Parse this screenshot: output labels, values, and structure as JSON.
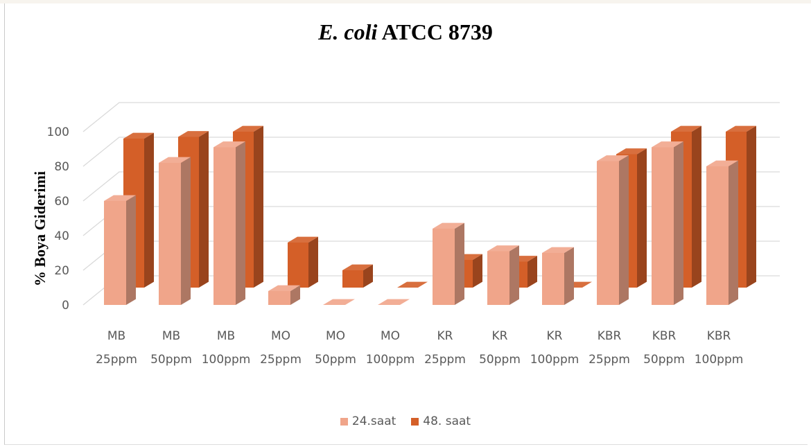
{
  "chart_data": {
    "type": "bar",
    "title_italic": "E. coli",
    "title_rest": "ATCC 8739",
    "ylabel": "% Boya Giderimi",
    "xlabel": "",
    "ylim": [
      0,
      100
    ],
    "yticks": [
      0,
      20,
      40,
      60,
      80,
      100
    ],
    "grid": true,
    "legend_position": "bottom",
    "categories": [
      [
        "MB",
        "25ppm"
      ],
      [
        "MB",
        "50ppm"
      ],
      [
        "MB",
        "100ppm"
      ],
      [
        "MO",
        "25ppm"
      ],
      [
        "MO",
        "50ppm"
      ],
      [
        "MO",
        "100ppm"
      ],
      [
        "KR",
        "25ppm"
      ],
      [
        "KR",
        "50ppm"
      ],
      [
        "KR",
        "100ppm"
      ],
      [
        "KBR",
        "25ppm"
      ],
      [
        "KBR",
        "50ppm"
      ],
      [
        "KBR",
        "100ppm"
      ]
    ],
    "series": [
      {
        "name": "24.saat",
        "color": "#f0a58a",
        "values": [
          60,
          82,
          91,
          8,
          0,
          0,
          44,
          31,
          30,
          83,
          91,
          80
        ]
      },
      {
        "name": "48. saat",
        "color": "#d45f28",
        "values": [
          86,
          87,
          90,
          26,
          10,
          0,
          16,
          15,
          0,
          77,
          90,
          90
        ]
      }
    ]
  }
}
